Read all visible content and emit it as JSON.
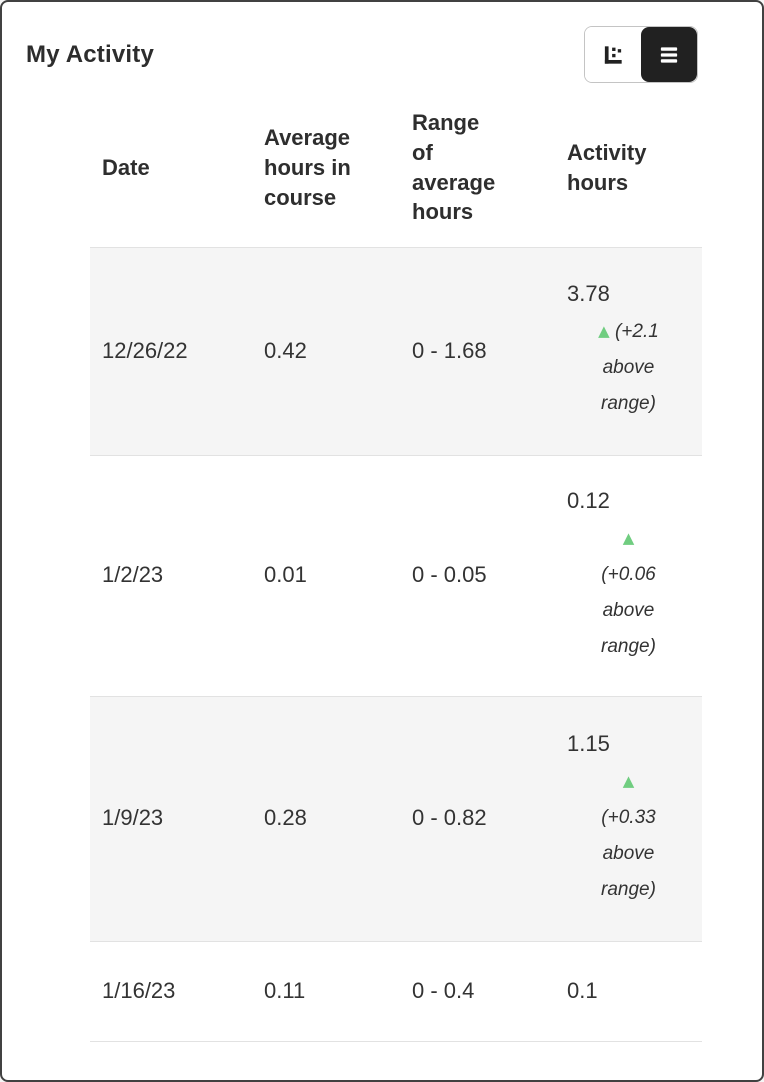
{
  "header": {
    "title": "My Activity"
  },
  "view_toggle": {
    "chart_button_icon": "scatter-chart-icon",
    "list_button_icon": "list-icon",
    "selected": "list"
  },
  "colors": {
    "accent_green": "#70cd80",
    "row_stripe": "#f5f5f5",
    "divider": "#e2e2e2",
    "toggle_active_bg": "#212121",
    "text": "#333333",
    "frame_border": "#414141"
  },
  "table": {
    "triangle_glyph": "▲",
    "columns": [
      {
        "key": "date",
        "label": "Date"
      },
      {
        "key": "average-hours-in-course",
        "label": "Average hours in course"
      },
      {
        "key": "range-of-average-hours",
        "label": "Range of average hours"
      },
      {
        "key": "activity-hours",
        "label": "Activity hours"
      }
    ],
    "rows": [
      {
        "date": "12/26/22",
        "average_hours": "0.42",
        "range": "0 - 1.68",
        "activity_hours": "3.78",
        "delta_note": "(+2.1 above range)",
        "above_range": true
      },
      {
        "date": "1/2/23",
        "average_hours": "0.01",
        "range": "0 - 0.05",
        "activity_hours": "0.12",
        "delta_note": "(+0.06 above range)",
        "above_range": true
      },
      {
        "date": "1/9/23",
        "average_hours": "0.28",
        "range": "0 - 0.82",
        "activity_hours": "1.15",
        "delta_note": "(+0.33 above range)",
        "above_range": true
      },
      {
        "date": "1/16/23",
        "average_hours": "0.11",
        "range": "0 - 0.4",
        "activity_hours": "0.1",
        "delta_note": null,
        "above_range": false
      }
    ]
  }
}
